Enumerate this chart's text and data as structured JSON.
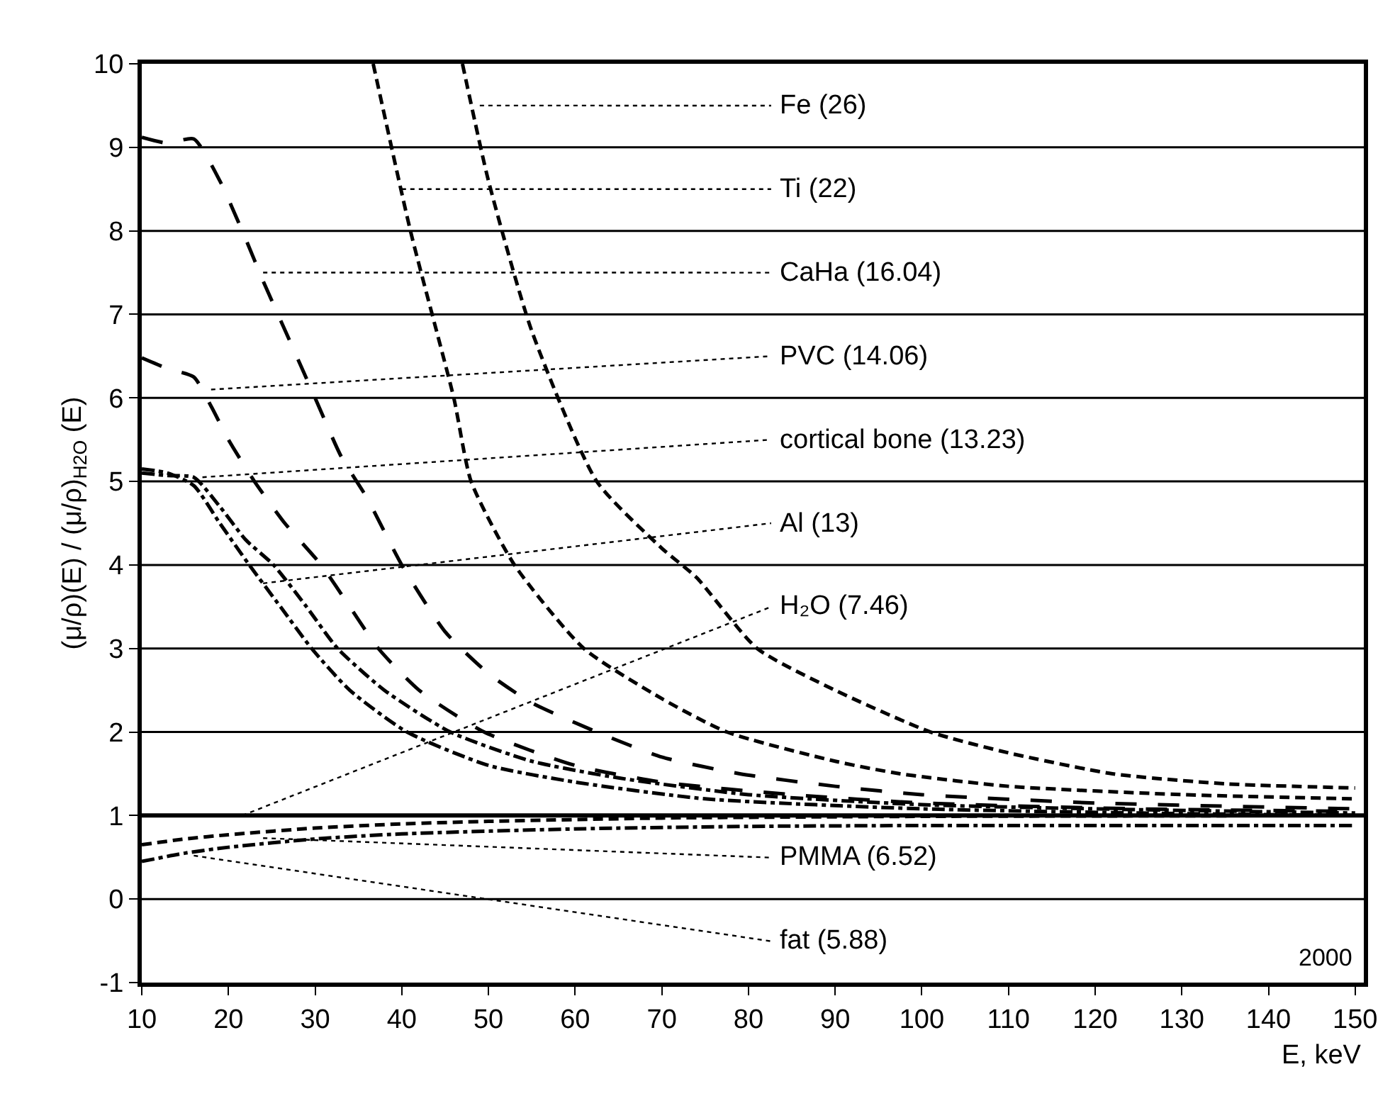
{
  "chart_data": {
    "type": "line",
    "xlabel": "E, keV",
    "ylabel": "(μ/ρ)(E) / (μ/ρ)$_{H2O}$ (E)",
    "xlim": [
      10,
      151
    ],
    "ylim": [
      -1,
      10
    ],
    "xticks": [
      10,
      20,
      30,
      40,
      50,
      60,
      70,
      80,
      90,
      100,
      110,
      120,
      130,
      140,
      150
    ],
    "yticks": [
      -1,
      0,
      1,
      2,
      3,
      4,
      5,
      6,
      7,
      8,
      9,
      10
    ],
    "grid": "y",
    "series": [
      {
        "color": "#000000",
        "line_style": "dashed",
        "x": [
          47,
          50,
          55,
          62.5,
          70,
          74,
          81,
          90,
          101,
          110,
          122,
          135,
          150
        ],
        "values": [
          10,
          8.6,
          6.8,
          5,
          4.2,
          3.85,
          3,
          2.5,
          2,
          1.75,
          1.5,
          1.38,
          1.33
        ]
      },
      {
        "color": "#000000",
        "line_style": "dashed",
        "x": [
          36.7,
          41,
          46,
          48,
          53,
          61,
          70,
          77.5,
          90,
          97.5,
          110,
          130,
          150
        ],
        "values": [
          10,
          8,
          6,
          5,
          4,
          3,
          2.4,
          2,
          1.65,
          1.5,
          1.35,
          1.25,
          1.2
        ]
      },
      {
        "color": "#000000",
        "line_style": "longdash",
        "x": [
          10,
          13,
          16,
          19,
          22,
          24,
          27,
          30,
          33,
          36,
          40,
          45,
          50,
          55,
          62.5,
          70,
          79,
          90,
          100,
          120,
          150
        ],
        "values": [
          9.12,
          9.05,
          9.1,
          8.6,
          7.9,
          7.4,
          6.7,
          6,
          5.3,
          4.8,
          4,
          3.2,
          2.7,
          2.35,
          2,
          1.7,
          1.5,
          1.35,
          1.25,
          1.15,
          1.08
        ]
      },
      {
        "color": "#000000",
        "line_style": "longdash",
        "x": [
          10,
          13,
          16,
          18,
          20,
          23,
          26.5,
          30.7,
          34,
          37.3,
          42,
          49.5,
          60,
          70,
          85,
          100,
          125,
          150
        ],
        "values": [
          6.48,
          6.35,
          6.25,
          5.9,
          5.5,
          5,
          4.5,
          4,
          3.5,
          3,
          2.5,
          2,
          1.6,
          1.4,
          1.25,
          1.15,
          1.08,
          1.05
        ]
      },
      {
        "color": "#000000",
        "line_style": "dashdot",
        "x": [
          10,
          13,
          16,
          19,
          22.4,
          26,
          29.6,
          34,
          40.6,
          50,
          60,
          75,
          100,
          125,
          150
        ],
        "values": [
          5.15,
          5.1,
          4.95,
          4.5,
          4,
          3.5,
          3,
          2.5,
          2,
          1.6,
          1.4,
          1.2,
          1.08,
          1.03,
          1
        ]
      },
      {
        "color": "#000000",
        "line_style": "dashdot",
        "x": [
          10,
          13,
          16,
          19,
          22,
          25.2,
          29,
          32.6,
          38,
          45.6,
          55,
          65,
          80,
          100,
          125,
          150
        ],
        "values": [
          5.1,
          5.07,
          5.05,
          4.7,
          4.3,
          4,
          3.5,
          3,
          2.5,
          2,
          1.65,
          1.45,
          1.25,
          1.13,
          1.07,
          1.03
        ]
      },
      {
        "color": "#000000",
        "line_style": "dashed",
        "x": [
          10,
          15,
          20,
          30,
          40,
          50,
          70,
          100,
          150
        ],
        "values": [
          0.65,
          0.72,
          0.77,
          0.85,
          0.9,
          0.93,
          0.97,
          0.99,
          1
        ]
      },
      {
        "color": "#000000",
        "line_style": "dashdot",
        "x": [
          10,
          15,
          20,
          30,
          40,
          60,
          80,
          100,
          150
        ],
        "values": [
          0.45,
          0.55,
          0.62,
          0.72,
          0.78,
          0.84,
          0.87,
          0.88,
          0.88
        ]
      }
    ],
    "annotations": [
      {
        "text": "Fe (26)",
        "x": 49,
        "y": 9.5
      },
      {
        "text": "Ti (22)",
        "x": 40,
        "y": 8.5
      },
      {
        "text": "CaHa (16.04)",
        "x": 24,
        "y": 7.5
      },
      {
        "text": "PVC (14.06)",
        "x": 18,
        "y": 6.1
      },
      {
        "text": "cortical bone (13.23)",
        "x": 17,
        "y": 5.05
      },
      {
        "text": "Al (13)",
        "x": 24,
        "y": 3.78
      },
      {
        "text": "H₂O (7.46)",
        "x": 21.6,
        "y": 1
      },
      {
        "text": "PMMA (6.52)",
        "x": 24,
        "y": 0.73
      },
      {
        "text": "fat (5.88)",
        "x": 16,
        "y": 0.52
      },
      "2000"
    ],
    "ref_lines": [
      {
        "axis": "y",
        "value": 1
      }
    ]
  }
}
